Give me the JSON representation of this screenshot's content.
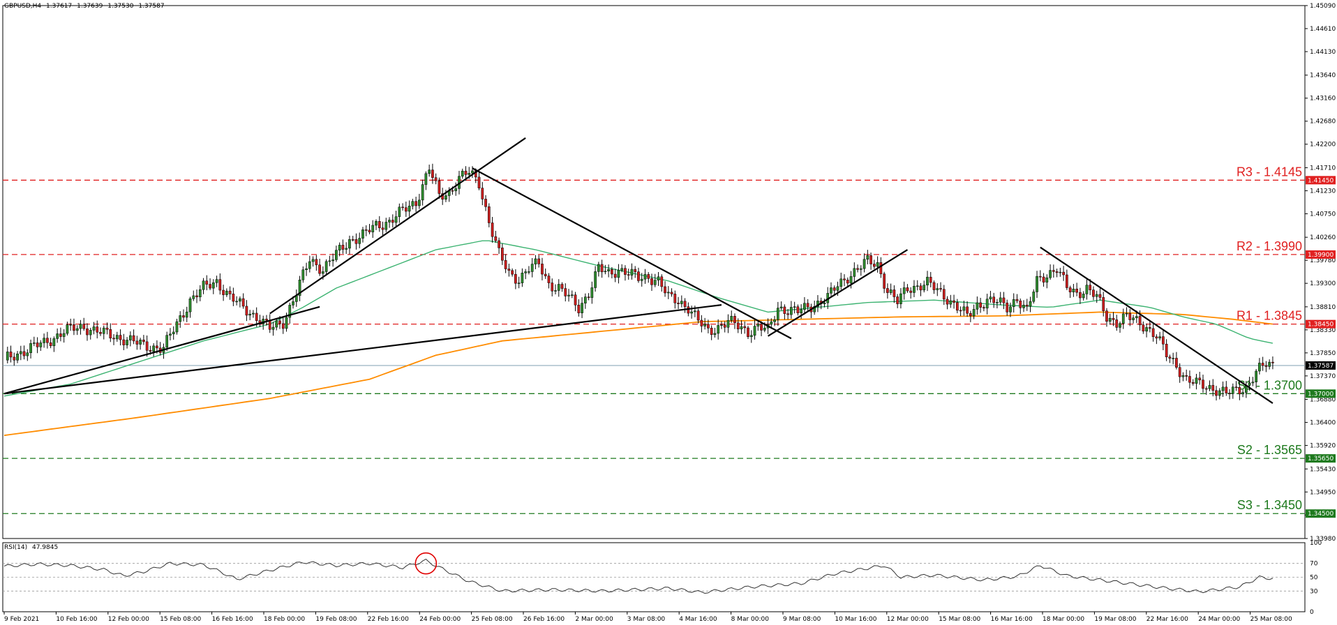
{
  "header": {
    "symbol": "GBPUSD,H4",
    "open": "1.37617",
    "high": "1.37639",
    "low": "1.37530",
    "close": "1.37587"
  },
  "rsi_header": {
    "label": "RSI(14)",
    "value": "47.9845"
  },
  "colors": {
    "bull": "#2e8b2e",
    "bear": "#cc1f1f",
    "ma_fast": "#3cb371",
    "ma_slow": "#ff8c00",
    "resistance": "#e02020",
    "support": "#1e7a1e",
    "trendline": "#000000",
    "rsi_line": "#333333",
    "circle": "#e00000"
  },
  "chart_data": [
    {
      "type": "candlestick",
      "title": "GBPUSD,H4",
      "ylim": [
        1.3398,
        1.4509
      ],
      "y_ticks": [
        "1.45090",
        "1.44610",
        "1.44130",
        "1.43640",
        "1.43160",
        "1.42680",
        "1.42200",
        "1.41710",
        "1.41230",
        "1.40750",
        "1.40260",
        "1.39780",
        "1.39300",
        "1.38810",
        "1.38330",
        "1.37850",
        "1.37370",
        "1.36880",
        "1.36400",
        "1.35920",
        "1.35430",
        "1.34950",
        "1.34470",
        "1.33980"
      ],
      "x_ticks": [
        "9 Feb 2021",
        "10 Feb 16:00",
        "12 Feb 00:00",
        "15 Feb 08:00",
        "16 Feb 16:00",
        "18 Feb 00:00",
        "19 Feb 08:00",
        "22 Feb 16:00",
        "24 Feb 00:00",
        "25 Feb 08:00",
        "26 Feb 16:00",
        "2 Mar 00:00",
        "3 Mar 08:00",
        "4 Mar 16:00",
        "8 Mar 00:00",
        "9 Mar 08:00",
        "10 Mar 16:00",
        "12 Mar 00:00",
        "15 Mar 08:00",
        "16 Mar 16:00",
        "18 Mar 00:00",
        "19 Mar 08:00",
        "22 Mar 16:00",
        "24 Mar 00:00",
        "25 Mar 08:00"
      ],
      "current_price_tag": "1.37587",
      "current_price": 1.37587,
      "levels": [
        {
          "label": "R3 - 1.4145",
          "value": 1.4145,
          "tag": "1.41450",
          "kind": "resistance"
        },
        {
          "label": "R2 - 1.3990",
          "value": 1.399,
          "tag": "1.39900",
          "kind": "resistance"
        },
        {
          "label": "R1 - 1.3845",
          "value": 1.3845,
          "tag": "1.38450",
          "kind": "resistance"
        },
        {
          "label": "S1 - 1.3700",
          "value": 1.37,
          "tag": "1.37000",
          "kind": "support"
        },
        {
          "label": "S2 - 1.3565",
          "value": 1.3565,
          "tag": "1.35650",
          "kind": "support"
        },
        {
          "label": "S3 - 1.3450",
          "value": 1.345,
          "tag": "1.34500",
          "kind": "support"
        }
      ],
      "close_path": [
        [
          0,
          1.377
        ],
        [
          6,
          1.379
        ],
        [
          12,
          1.3805
        ],
        [
          18,
          1.383
        ],
        [
          24,
          1.384
        ],
        [
          30,
          1.3825
        ],
        [
          36,
          1.3815
        ],
        [
          42,
          1.38
        ],
        [
          48,
          1.3795
        ],
        [
          52,
          1.3845
        ],
        [
          56,
          1.3895
        ],
        [
          60,
          1.392
        ],
        [
          64,
          1.3935
        ],
        [
          68,
          1.39
        ],
        [
          72,
          1.388
        ],
        [
          76,
          1.386
        ],
        [
          80,
          1.3835
        ],
        [
          84,
          1.385
        ],
        [
          88,
          1.391
        ],
        [
          92,
          1.398
        ],
        [
          96,
          1.396
        ],
        [
          100,
          1.399
        ],
        [
          104,
          1.402
        ],
        [
          108,
          1.403
        ],
        [
          112,
          1.405
        ],
        [
          116,
          1.406
        ],
        [
          120,
          1.408
        ],
        [
          124,
          1.41
        ],
        [
          128,
          1.417
        ],
        [
          131,
          1.411
        ],
        [
          134,
          1.412
        ],
        [
          137,
          1.415
        ],
        [
          140,
          1.416
        ],
        [
          143,
          1.414
        ],
        [
          146,
          1.406
        ],
        [
          149,
          1.399
        ],
        [
          152,
          1.395
        ],
        [
          155,
          1.394
        ],
        [
          158,
          1.396
        ],
        [
          161,
          1.397
        ],
        [
          164,
          1.393
        ],
        [
          167,
          1.392
        ],
        [
          170,
          1.39
        ],
        [
          173,
          1.388
        ],
        [
          176,
          1.391
        ],
        [
          179,
          1.396
        ],
        [
          182,
          1.395
        ],
        [
          185,
          1.396
        ],
        [
          188,
          1.395
        ],
        [
          191,
          1.394
        ],
        [
          194,
          1.3945
        ],
        [
          197,
          1.3935
        ],
        [
          200,
          1.39
        ],
        [
          203,
          1.3895
        ],
        [
          206,
          1.388
        ],
        [
          209,
          1.385
        ],
        [
          212,
          1.383
        ],
        [
          215,
          1.384
        ],
        [
          218,
          1.385
        ],
        [
          221,
          1.384
        ],
        [
          224,
          1.383
        ],
        [
          227,
          1.384
        ],
        [
          230,
          1.383
        ],
        [
          233,
          1.388
        ],
        [
          236,
          1.3875
        ],
        [
          239,
          1.387
        ],
        [
          242,
          1.388
        ],
        [
          245,
          1.389
        ],
        [
          248,
          1.39
        ],
        [
          251,
          1.3925
        ],
        [
          254,
          1.3945
        ],
        [
          257,
          1.396
        ],
        [
          260,
          1.3975
        ],
        [
          263,
          1.397
        ],
        [
          266,
          1.3915
        ],
        [
          269,
          1.389
        ],
        [
          272,
          1.392
        ],
        [
          275,
          1.3925
        ],
        [
          278,
          1.393
        ],
        [
          281,
          1.3915
        ],
        [
          284,
          1.39
        ],
        [
          287,
          1.388
        ],
        [
          290,
          1.386
        ],
        [
          293,
          1.3885
        ],
        [
          296,
          1.3895
        ],
        [
          299,
          1.389
        ],
        [
          302,
          1.388
        ],
        [
          305,
          1.39
        ],
        [
          308,
          1.387
        ],
        [
          311,
          1.3935
        ],
        [
          314,
          1.395
        ],
        [
          317,
          1.396
        ],
        [
          320,
          1.392
        ],
        [
          323,
          1.391
        ],
        [
          326,
          1.392
        ],
        [
          329,
          1.39
        ],
        [
          332,
          1.386
        ],
        [
          335,
          1.385
        ],
        [
          338,
          1.386
        ],
        [
          341,
          1.385
        ],
        [
          344,
          1.384
        ],
        [
          347,
          1.382
        ],
        [
          350,
          1.378
        ],
        [
          353,
          1.376
        ],
        [
          356,
          1.373
        ],
        [
          359,
          1.372
        ],
        [
          362,
          1.3715
        ],
        [
          365,
          1.371
        ],
        [
          368,
          1.37
        ],
        [
          371,
          1.3705
        ],
        [
          374,
          1.3715
        ],
        [
          377,
          1.3745
        ],
        [
          380,
          1.376
        ],
        [
          382,
          1.37587
        ]
      ],
      "ma_fast_path": [
        [
          0,
          1.3695
        ],
        [
          20,
          1.372
        ],
        [
          40,
          1.3765
        ],
        [
          60,
          1.381
        ],
        [
          80,
          1.3845
        ],
        [
          90,
          1.388
        ],
        [
          100,
          1.392
        ],
        [
          115,
          1.396
        ],
        [
          130,
          1.4
        ],
        [
          145,
          1.402
        ],
        [
          160,
          1.4
        ],
        [
          180,
          1.3965
        ],
        [
          200,
          1.3935
        ],
        [
          215,
          1.39
        ],
        [
          230,
          1.387
        ],
        [
          245,
          1.388
        ],
        [
          260,
          1.389
        ],
        [
          280,
          1.3895
        ],
        [
          300,
          1.3885
        ],
        [
          315,
          1.388
        ],
        [
          330,
          1.3895
        ],
        [
          345,
          1.388
        ],
        [
          355,
          1.386
        ],
        [
          365,
          1.3845
        ],
        [
          375,
          1.3815
        ],
        [
          382,
          1.3805
        ]
      ],
      "ma_slow_path": [
        [
          0,
          1.3613
        ],
        [
          40,
          1.365
        ],
        [
          80,
          1.369
        ],
        [
          110,
          1.373
        ],
        [
          130,
          1.378
        ],
        [
          150,
          1.381
        ],
        [
          180,
          1.383
        ],
        [
          210,
          1.385
        ],
        [
          240,
          1.3855
        ],
        [
          270,
          1.386
        ],
        [
          300,
          1.3862
        ],
        [
          330,
          1.387
        ],
        [
          355,
          1.3865
        ],
        [
          370,
          1.3855
        ],
        [
          382,
          1.3845
        ]
      ],
      "trendlines": [
        {
          "from": [
            0,
            1.37
          ],
          "to": [
            95,
            1.3881
          ]
        },
        {
          "from": [
            0,
            1.37
          ],
          "to": [
            216,
            1.3885
          ]
        },
        {
          "from": [
            80,
            1.3867
          ],
          "to": [
            157,
            1.4233
          ]
        },
        {
          "from": [
            141,
            1.417
          ],
          "to": [
            237,
            1.3815
          ]
        },
        {
          "from": [
            230,
            1.382
          ],
          "to": [
            272,
            1.4
          ]
        },
        {
          "from": [
            312,
            1.4005
          ],
          "to": [
            382,
            1.368
          ]
        }
      ]
    },
    {
      "type": "line",
      "title": "RSI(14) 47.9845",
      "ylim": [
        0,
        100
      ],
      "y_ticks": [
        "100",
        "70",
        "50",
        "30",
        "0"
      ],
      "levels": [
        70,
        50,
        30
      ],
      "annotation": {
        "shape": "circle",
        "x": 127,
        "y": 70
      },
      "values_path": [
        [
          0,
          66
        ],
        [
          10,
          69
        ],
        [
          20,
          67
        ],
        [
          30,
          61
        ],
        [
          36,
          52
        ],
        [
          42,
          58
        ],
        [
          50,
          70
        ],
        [
          60,
          68
        ],
        [
          66,
          56
        ],
        [
          70,
          47
        ],
        [
          80,
          60
        ],
        [
          90,
          72
        ],
        [
          100,
          67
        ],
        [
          110,
          70
        ],
        [
          120,
          64
        ],
        [
          127,
          74
        ],
        [
          132,
          62
        ],
        [
          140,
          44
        ],
        [
          150,
          30
        ],
        [
          165,
          32
        ],
        [
          180,
          30
        ],
        [
          200,
          34
        ],
        [
          210,
          28
        ],
        [
          225,
          36
        ],
        [
          240,
          41
        ],
        [
          250,
          55
        ],
        [
          265,
          67
        ],
        [
          270,
          50
        ],
        [
          280,
          53
        ],
        [
          295,
          46
        ],
        [
          305,
          51
        ],
        [
          312,
          67
        ],
        [
          320,
          52
        ],
        [
          335,
          43
        ],
        [
          350,
          34
        ],
        [
          360,
          29
        ],
        [
          372,
          36
        ],
        [
          378,
          50
        ],
        [
          382,
          48
        ]
      ]
    }
  ]
}
